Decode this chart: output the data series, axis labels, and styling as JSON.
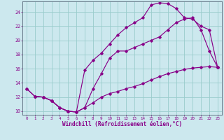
{
  "xlabel": "Windchill (Refroidissement éolien,°C)",
  "bg_color": "#cce8ee",
  "line_color": "#880088",
  "grid_color": "#99cccc",
  "xlim": [
    -0.5,
    23.5
  ],
  "ylim": [
    9.5,
    25.5
  ],
  "yticks": [
    10,
    12,
    14,
    16,
    18,
    20,
    22,
    24
  ],
  "xticks": [
    0,
    1,
    2,
    3,
    4,
    5,
    6,
    7,
    8,
    9,
    10,
    11,
    12,
    13,
    14,
    15,
    16,
    17,
    18,
    19,
    20,
    21,
    22,
    23
  ],
  "line1_x": [
    0,
    1,
    2,
    3,
    4,
    5,
    6,
    7,
    8,
    9,
    10,
    11,
    12,
    13,
    14,
    15,
    16,
    17,
    18,
    19,
    20,
    21,
    22,
    23
  ],
  "line1_y": [
    13.2,
    12.1,
    12.0,
    11.5,
    10.5,
    10.0,
    9.9,
    10.5,
    13.2,
    15.3,
    17.5,
    18.5,
    18.5,
    19.0,
    19.5,
    20.0,
    20.5,
    21.5,
    22.5,
    23.0,
    23.2,
    21.5,
    18.5,
    16.2
  ],
  "line2_x": [
    0,
    1,
    2,
    3,
    4,
    5,
    6,
    7,
    8,
    9,
    10,
    11,
    12,
    13,
    14,
    15,
    16,
    17,
    18,
    19,
    20,
    21,
    22,
    23
  ],
  "line2_y": [
    13.2,
    12.1,
    12.0,
    11.5,
    10.5,
    10.0,
    9.9,
    15.8,
    17.2,
    18.2,
    19.5,
    20.8,
    21.8,
    22.5,
    23.2,
    25.0,
    25.3,
    25.2,
    24.5,
    23.2,
    23.0,
    22.0,
    21.5,
    16.2
  ],
  "line3_x": [
    1,
    2,
    3,
    4,
    5,
    6,
    7,
    8,
    9,
    10,
    11,
    12,
    13,
    14,
    15,
    16,
    17,
    18,
    19,
    20,
    21,
    22,
    23
  ],
  "line3_y": [
    12.1,
    12.0,
    11.5,
    10.5,
    10.0,
    9.9,
    10.5,
    11.2,
    12.0,
    12.5,
    12.8,
    13.2,
    13.5,
    13.9,
    14.4,
    14.9,
    15.3,
    15.6,
    15.9,
    16.1,
    16.2,
    16.3,
    16.2
  ]
}
